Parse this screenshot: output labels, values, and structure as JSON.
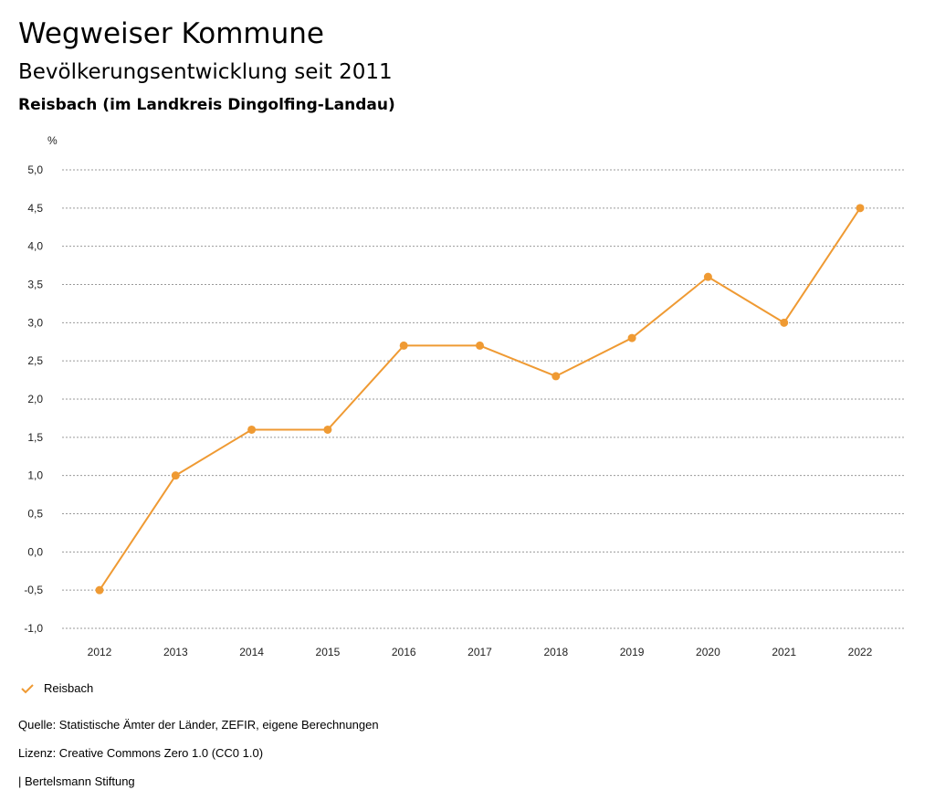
{
  "header": {
    "title": "Wegweiser Kommune",
    "subtitle": "Bevölkerungsentwicklung seit 2011",
    "region": "Reisbach (im Landkreis Dingolfing-Landau)"
  },
  "chart_data": {
    "type": "line",
    "title": "Bevölkerungsentwicklung seit 2011",
    "subtitle": "Reisbach (im Landkreis Dingolfing-Landau)",
    "xlabel": "",
    "ylabel": "%",
    "categories": [
      "2012",
      "2013",
      "2014",
      "2015",
      "2016",
      "2017",
      "2018",
      "2019",
      "2020",
      "2021",
      "2022"
    ],
    "series": [
      {
        "name": "Reisbach",
        "color": "#ef9a33",
        "values": [
          -0.5,
          1.0,
          1.6,
          1.6,
          2.7,
          2.7,
          2.3,
          2.8,
          3.6,
          3.0,
          4.5
        ]
      }
    ],
    "ylim": [
      -1.0,
      5.0
    ],
    "yticks": [
      -1.0,
      -0.5,
      0.0,
      0.5,
      1.0,
      1.5,
      2.0,
      2.5,
      3.0,
      3.5,
      4.0,
      4.5,
      5.0
    ],
    "ytick_labels": [
      "-1,0",
      "-0,5",
      "0,0",
      "0,5",
      "1,0",
      "1,5",
      "2,0",
      "2,5",
      "3,0",
      "3,5",
      "4,0",
      "4,5",
      "5,0"
    ],
    "grid": true,
    "legend": "bottom-left"
  },
  "legend": {
    "label": "Reisbach",
    "color": "#ef9a33",
    "icon": "check-icon"
  },
  "footer": {
    "source": "Quelle: Statistische Ämter der Länder, ZEFIR, eigene Berechnungen",
    "license": "Lizenz: Creative Commons Zero 1.0 (CC0 1.0)",
    "publisher": "| Bertelsmann Stiftung"
  }
}
